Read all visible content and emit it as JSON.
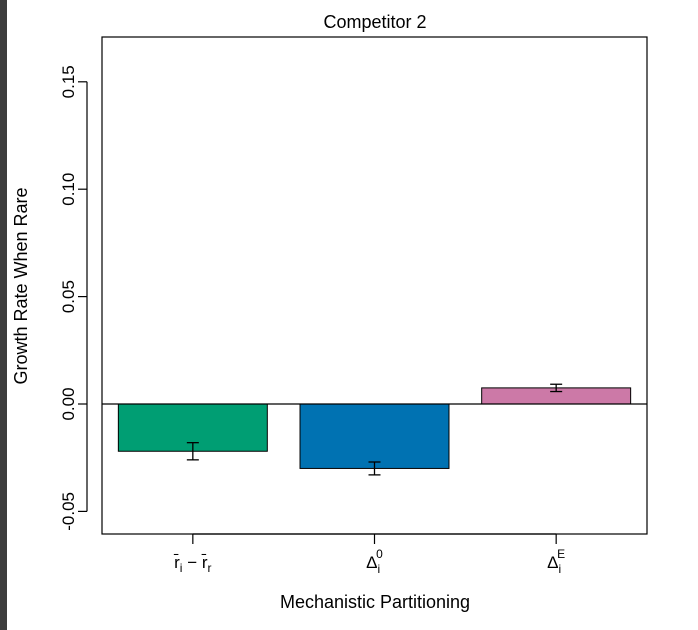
{
  "chart_data": {
    "type": "bar",
    "title": "Competitor 2",
    "xlabel": "Mechanistic Partitioning",
    "ylabel": "Growth Rate When Rare",
    "ylim": [
      -0.06,
      0.17
    ],
    "yticks": [
      "-0.05",
      "0.00",
      "0.05",
      "0.10",
      "0.15"
    ],
    "ytick_values": [
      -0.05,
      0.0,
      0.05,
      0.1,
      0.15
    ],
    "grid": false,
    "zero_line": true,
    "categories": [
      "r̄i − r̄r",
      "Δi0",
      "ΔiE"
    ],
    "category_parts": [
      {
        "main": "r̄",
        "sub": "i",
        "sup": "",
        "op": "−",
        "main2": "r̄",
        "sub2": "r"
      },
      {
        "main": "Δ",
        "sub": "i",
        "sup": "0"
      },
      {
        "main": "Δ",
        "sub": "i",
        "sup": "E"
      }
    ],
    "values": [
      -0.022,
      -0.03,
      0.0075
    ],
    "errors": [
      {
        "low": -0.026,
        "high": -0.018
      },
      {
        "low": -0.033,
        "high": -0.027
      },
      {
        "low": 0.0058,
        "high": 0.0092
      }
    ],
    "colors": [
      "#009E73",
      "#0072B2",
      "#CC79A7"
    ]
  }
}
